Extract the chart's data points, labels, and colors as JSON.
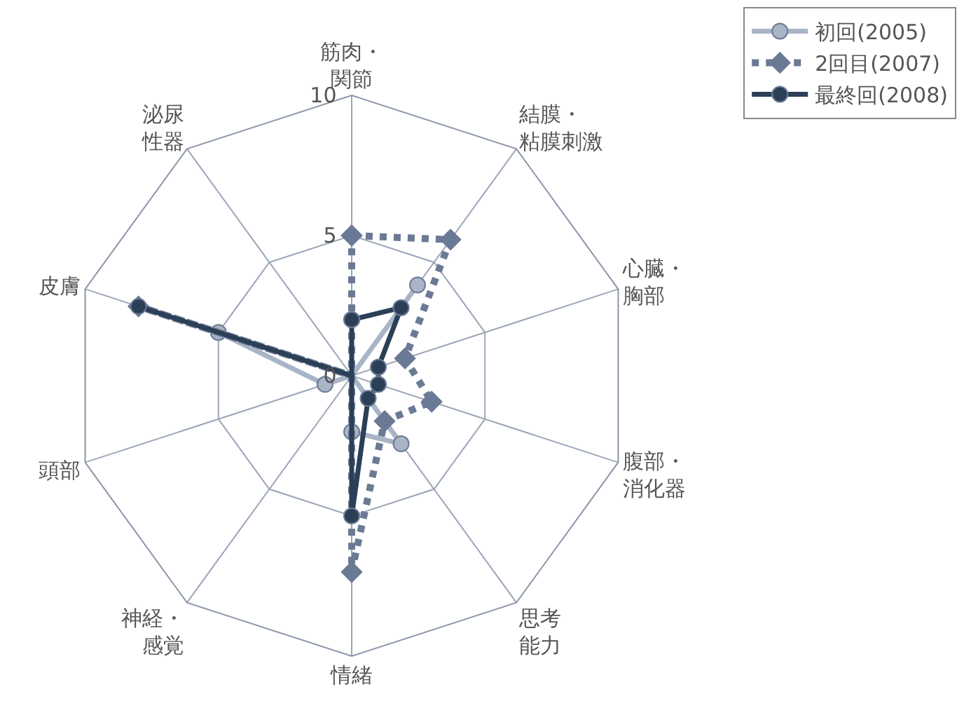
{
  "chart_data": {
    "type": "radar",
    "categories": [
      "筋肉・関節",
      "結膜・粘膜刺激",
      "心臓・胸部",
      "腹部・消化器",
      "思考能力",
      "情緒",
      "神経・感覚",
      "頭部",
      "皮膚",
      "泌尿性器"
    ],
    "series": [
      {
        "name": "初回(2005)",
        "color": "#a9b4c6",
        "marker": "circle",
        "line_style": "solid",
        "values": [
          0,
          4,
          0,
          0,
          3,
          2,
          0,
          1,
          5,
          0
        ]
      },
      {
        "name": "2回目(2007)",
        "color": "#6b7a94",
        "marker": "diamond",
        "line_style": "dotted",
        "values": [
          5,
          6,
          2,
          3,
          2,
          7,
          0,
          0,
          8,
          0
        ]
      },
      {
        "name": "最終回(2008)",
        "color": "#2b3f57",
        "marker": "circle",
        "line_style": "solid",
        "values": [
          2,
          3,
          1,
          1,
          1,
          5,
          0,
          0,
          8,
          0
        ]
      }
    ],
    "ylim": [
      0,
      10
    ],
    "yticks": [
      0,
      5,
      10
    ],
    "grid": true,
    "legend": "top right"
  }
}
